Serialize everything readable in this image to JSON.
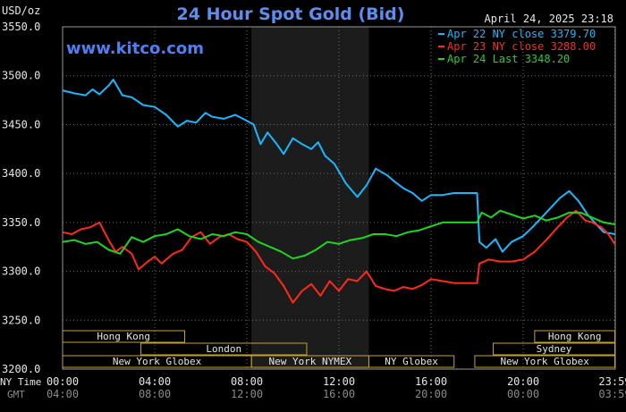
{
  "chart_data": {
    "type": "line",
    "title": "24 Hour Spot Gold (Bid)",
    "ylabel": "USD/oz",
    "date_label": "April 24, 2025 23:18",
    "watermark": "www.kitco.com",
    "ylim": [
      3200,
      3550
    ],
    "yticks": [
      "3550.0",
      "3500.0",
      "3450.0",
      "3400.0",
      "3350.0",
      "3300.0",
      "3250.0",
      "3200.0"
    ],
    "ytick_values": [
      3550,
      3500,
      3450,
      3400,
      3350,
      3300,
      3250,
      3200
    ],
    "xlim": [
      0,
      24
    ],
    "x_row_labels": [
      "NY Time",
      "GMT"
    ],
    "xticks_ny": [
      "00:00",
      "04:00",
      "08:00",
      "12:00",
      "16:00",
      "20:00",
      "23:59"
    ],
    "xticks_gmt": [
      "04:00",
      "08:00",
      "12:00",
      "16:00",
      "20:00",
      "00:00",
      "03:59"
    ],
    "xtick_hours": [
      0,
      4,
      8,
      12,
      16,
      20,
      23.98
    ],
    "grid": true,
    "shaded_hours": [
      8.2,
      13.3
    ],
    "legend": [
      {
        "text": "Apr 22 NY close 3379.70",
        "color": "#19b8ff"
      },
      {
        "text": "Apr 23 NY close 3288.00",
        "color": "#ff2a1a"
      },
      {
        "text": "Apr 24 Last 3348.20",
        "color": "#1fd61f"
      }
    ],
    "sessions": [
      {
        "label": "Hong Kong",
        "start": 0,
        "end": 5.3,
        "row": 0
      },
      {
        "label": "Hong Kong",
        "start": 20.5,
        "end": 23.98,
        "row": 0
      },
      {
        "label": "London",
        "start": 3.4,
        "end": 10.6,
        "row": 1
      },
      {
        "label": "Sydney",
        "start": 18.7,
        "end": 23.98,
        "row": 1
      },
      {
        "label": "New York Globex",
        "start": 0,
        "end": 8.2,
        "row": 2
      },
      {
        "label": "New York NYMEX",
        "start": 8.2,
        "end": 13.3,
        "row": 2
      },
      {
        "label": "NY Globex",
        "start": 13.3,
        "end": 17.0,
        "row": 2
      },
      {
        "label": "New York Globex",
        "start": 17.9,
        "end": 23.98,
        "row": 2
      }
    ],
    "session_color": "#c9a227",
    "series": [
      {
        "name": "Apr 22 NY close 3379.70",
        "color": "#19b8ff",
        "x": [
          0,
          0.5,
          1.0,
          1.3,
          1.6,
          2.0,
          2.2,
          2.6,
          3.0,
          3.5,
          4.0,
          4.5,
          5.0,
          5.4,
          5.8,
          6.2,
          6.5,
          7.0,
          7.5,
          8.0,
          8.3,
          8.6,
          8.9,
          9.3,
          9.6,
          10.0,
          10.4,
          10.8,
          11.1,
          11.4,
          11.8,
          12.3,
          12.8,
          13.2,
          13.6,
          14.1,
          14.4,
          14.8,
          15.2,
          15.6,
          16.0,
          16.5,
          17.0,
          17.5,
          18.0,
          18.1,
          18.4,
          18.8,
          19.1,
          19.5,
          20.0,
          20.4,
          20.8,
          21.2,
          21.6,
          22.0,
          22.4,
          22.8,
          23.1,
          23.5,
          23.98
        ],
        "y": [
          3485,
          3482,
          3480,
          3486,
          3481,
          3490,
          3496,
          3480,
          3478,
          3470,
          3468,
          3460,
          3448,
          3454,
          3452,
          3462,
          3458,
          3456,
          3460,
          3454,
          3450,
          3430,
          3442,
          3430,
          3420,
          3436,
          3430,
          3425,
          3432,
          3418,
          3410,
          3390,
          3376,
          3388,
          3405,
          3398,
          3392,
          3385,
          3380,
          3372,
          3378,
          3378,
          3380,
          3380,
          3380,
          3330,
          3324,
          3333,
          3320,
          3330,
          3336,
          3345,
          3355,
          3365,
          3375,
          3382,
          3372,
          3358,
          3350,
          3340,
          3338
        ]
      },
      {
        "name": "Apr 23 NY close 3288.00",
        "color": "#ff2a1a",
        "x": [
          0,
          0.4,
          0.8,
          1.2,
          1.6,
          2.0,
          2.3,
          2.6,
          3.0,
          3.3,
          3.7,
          4.0,
          4.3,
          4.8,
          5.2,
          5.6,
          6.0,
          6.4,
          6.8,
          7.2,
          7.6,
          8.0,
          8.4,
          8.8,
          9.2,
          9.6,
          10.0,
          10.4,
          10.8,
          11.2,
          11.6,
          12.0,
          12.4,
          12.8,
          13.2,
          13.6,
          14.0,
          14.4,
          14.8,
          15.2,
          15.6,
          16.0,
          16.5,
          17.0,
          17.5,
          18.0,
          18.1,
          18.5,
          19.0,
          19.5,
          20.0,
          20.5,
          21.0,
          21.5,
          21.9,
          22.3,
          22.7,
          23.0,
          23.4,
          23.7,
          23.98
        ],
        "y": [
          3340,
          3338,
          3343,
          3345,
          3350,
          3332,
          3320,
          3325,
          3318,
          3302,
          3310,
          3315,
          3308,
          3318,
          3322,
          3335,
          3340,
          3328,
          3335,
          3338,
          3333,
          3330,
          3320,
          3305,
          3298,
          3285,
          3268,
          3280,
          3287,
          3275,
          3290,
          3280,
          3292,
          3290,
          3300,
          3285,
          3282,
          3280,
          3284,
          3282,
          3286,
          3292,
          3290,
          3288,
          3288,
          3288,
          3308,
          3312,
          3310,
          3310,
          3312,
          3320,
          3332,
          3345,
          3355,
          3362,
          3352,
          3350,
          3345,
          3338,
          3328
        ]
      },
      {
        "name": "Apr 24 Last 3348.20",
        "color": "#1fd61f",
        "x": [
          0,
          0.5,
          1.0,
          1.5,
          2.0,
          2.5,
          3.0,
          3.5,
          4.0,
          4.5,
          5.0,
          5.5,
          6.0,
          6.5,
          7.0,
          7.5,
          8.0,
          8.5,
          9.0,
          9.5,
          10.0,
          10.5,
          11.0,
          11.5,
          12.0,
          12.5,
          13.0,
          13.5,
          14.0,
          14.5,
          15.0,
          15.5,
          16.0,
          16.5,
          17.0,
          17.5,
          18.0,
          18.2,
          18.6,
          19.0,
          19.5,
          20.0,
          20.5,
          21.0,
          21.5,
          22.0,
          22.5,
          23.0,
          23.5,
          23.98
        ],
        "y": [
          3330,
          3332,
          3328,
          3330,
          3322,
          3318,
          3335,
          3330,
          3336,
          3338,
          3343,
          3336,
          3333,
          3338,
          3336,
          3340,
          3338,
          3330,
          3325,
          3320,
          3313,
          3316,
          3322,
          3330,
          3328,
          3332,
          3334,
          3338,
          3338,
          3336,
          3340,
          3342,
          3346,
          3350,
          3350,
          3350,
          3350,
          3360,
          3355,
          3362,
          3358,
          3354,
          3357,
          3352,
          3355,
          3360,
          3360,
          3355,
          3350,
          3348
        ]
      }
    ]
  }
}
